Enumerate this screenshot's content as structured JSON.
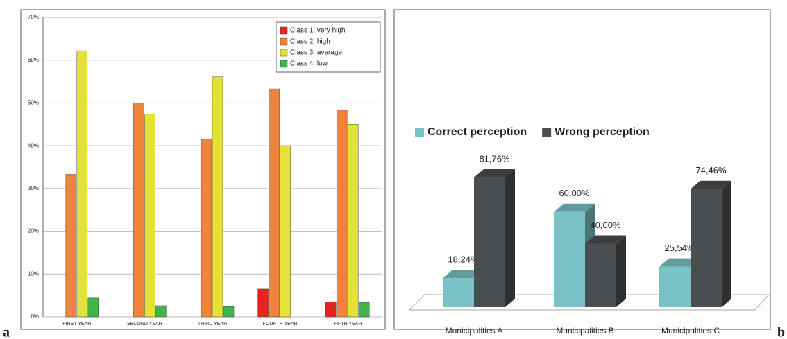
{
  "chart_data": [
    {
      "type": "bar",
      "panel_label": "a",
      "categories": [
        "FIRST YEAR",
        "SECOND YEAR",
        "THIRD YEAR",
        "FOURTH YEAR",
        "FIFTH YEAR"
      ],
      "series": [
        {
          "name": "Class 1: very high",
          "color": "#e8231d",
          "values": [
            0,
            0,
            0,
            6.5,
            3.5
          ]
        },
        {
          "name": "Class 2: high",
          "color": "#f0843c",
          "values": [
            33.3,
            50,
            41.5,
            53.3,
            48.3
          ]
        },
        {
          "name": "Class 3: average",
          "color": "#e4e236",
          "values": [
            62.2,
            47.4,
            56.1,
            40,
            45
          ]
        },
        {
          "name": "Class 4: low",
          "color": "#3fb54a",
          "values": [
            4.4,
            2.6,
            2.4,
            0,
            3.4
          ]
        }
      ],
      "ylim": [
        0,
        70
      ],
      "yticks": [
        {
          "value": 0,
          "label": "0%"
        },
        {
          "value": 10,
          "label": "10%"
        },
        {
          "value": 20,
          "label": "20%"
        },
        {
          "value": 30,
          "label": "30%"
        },
        {
          "value": 40,
          "label": "40%"
        },
        {
          "value": 50,
          "label": "50%"
        },
        {
          "value": 60,
          "label": "60%"
        },
        {
          "value": 70,
          "label": "70%"
        }
      ],
      "grid": true,
      "legend": "top-right"
    },
    {
      "type": "bar3d",
      "panel_label": "b",
      "categories": [
        "Municipalities A",
        "Municipalities B",
        "Municipalities C"
      ],
      "series": [
        {
          "name": "Correct perception",
          "color": "#79c3c7",
          "values": [
            18.24,
            60,
            25.54
          ],
          "value_labels": [
            "18,24%",
            "60,00%",
            "25,54%"
          ]
        },
        {
          "name": "Wrong perception",
          "color": "#4b4e50",
          "values": [
            81.76,
            40,
            74.46
          ],
          "value_labels": [
            "81,76%",
            "40,00%",
            "74,46%"
          ]
        }
      ],
      "legend": "top"
    }
  ]
}
